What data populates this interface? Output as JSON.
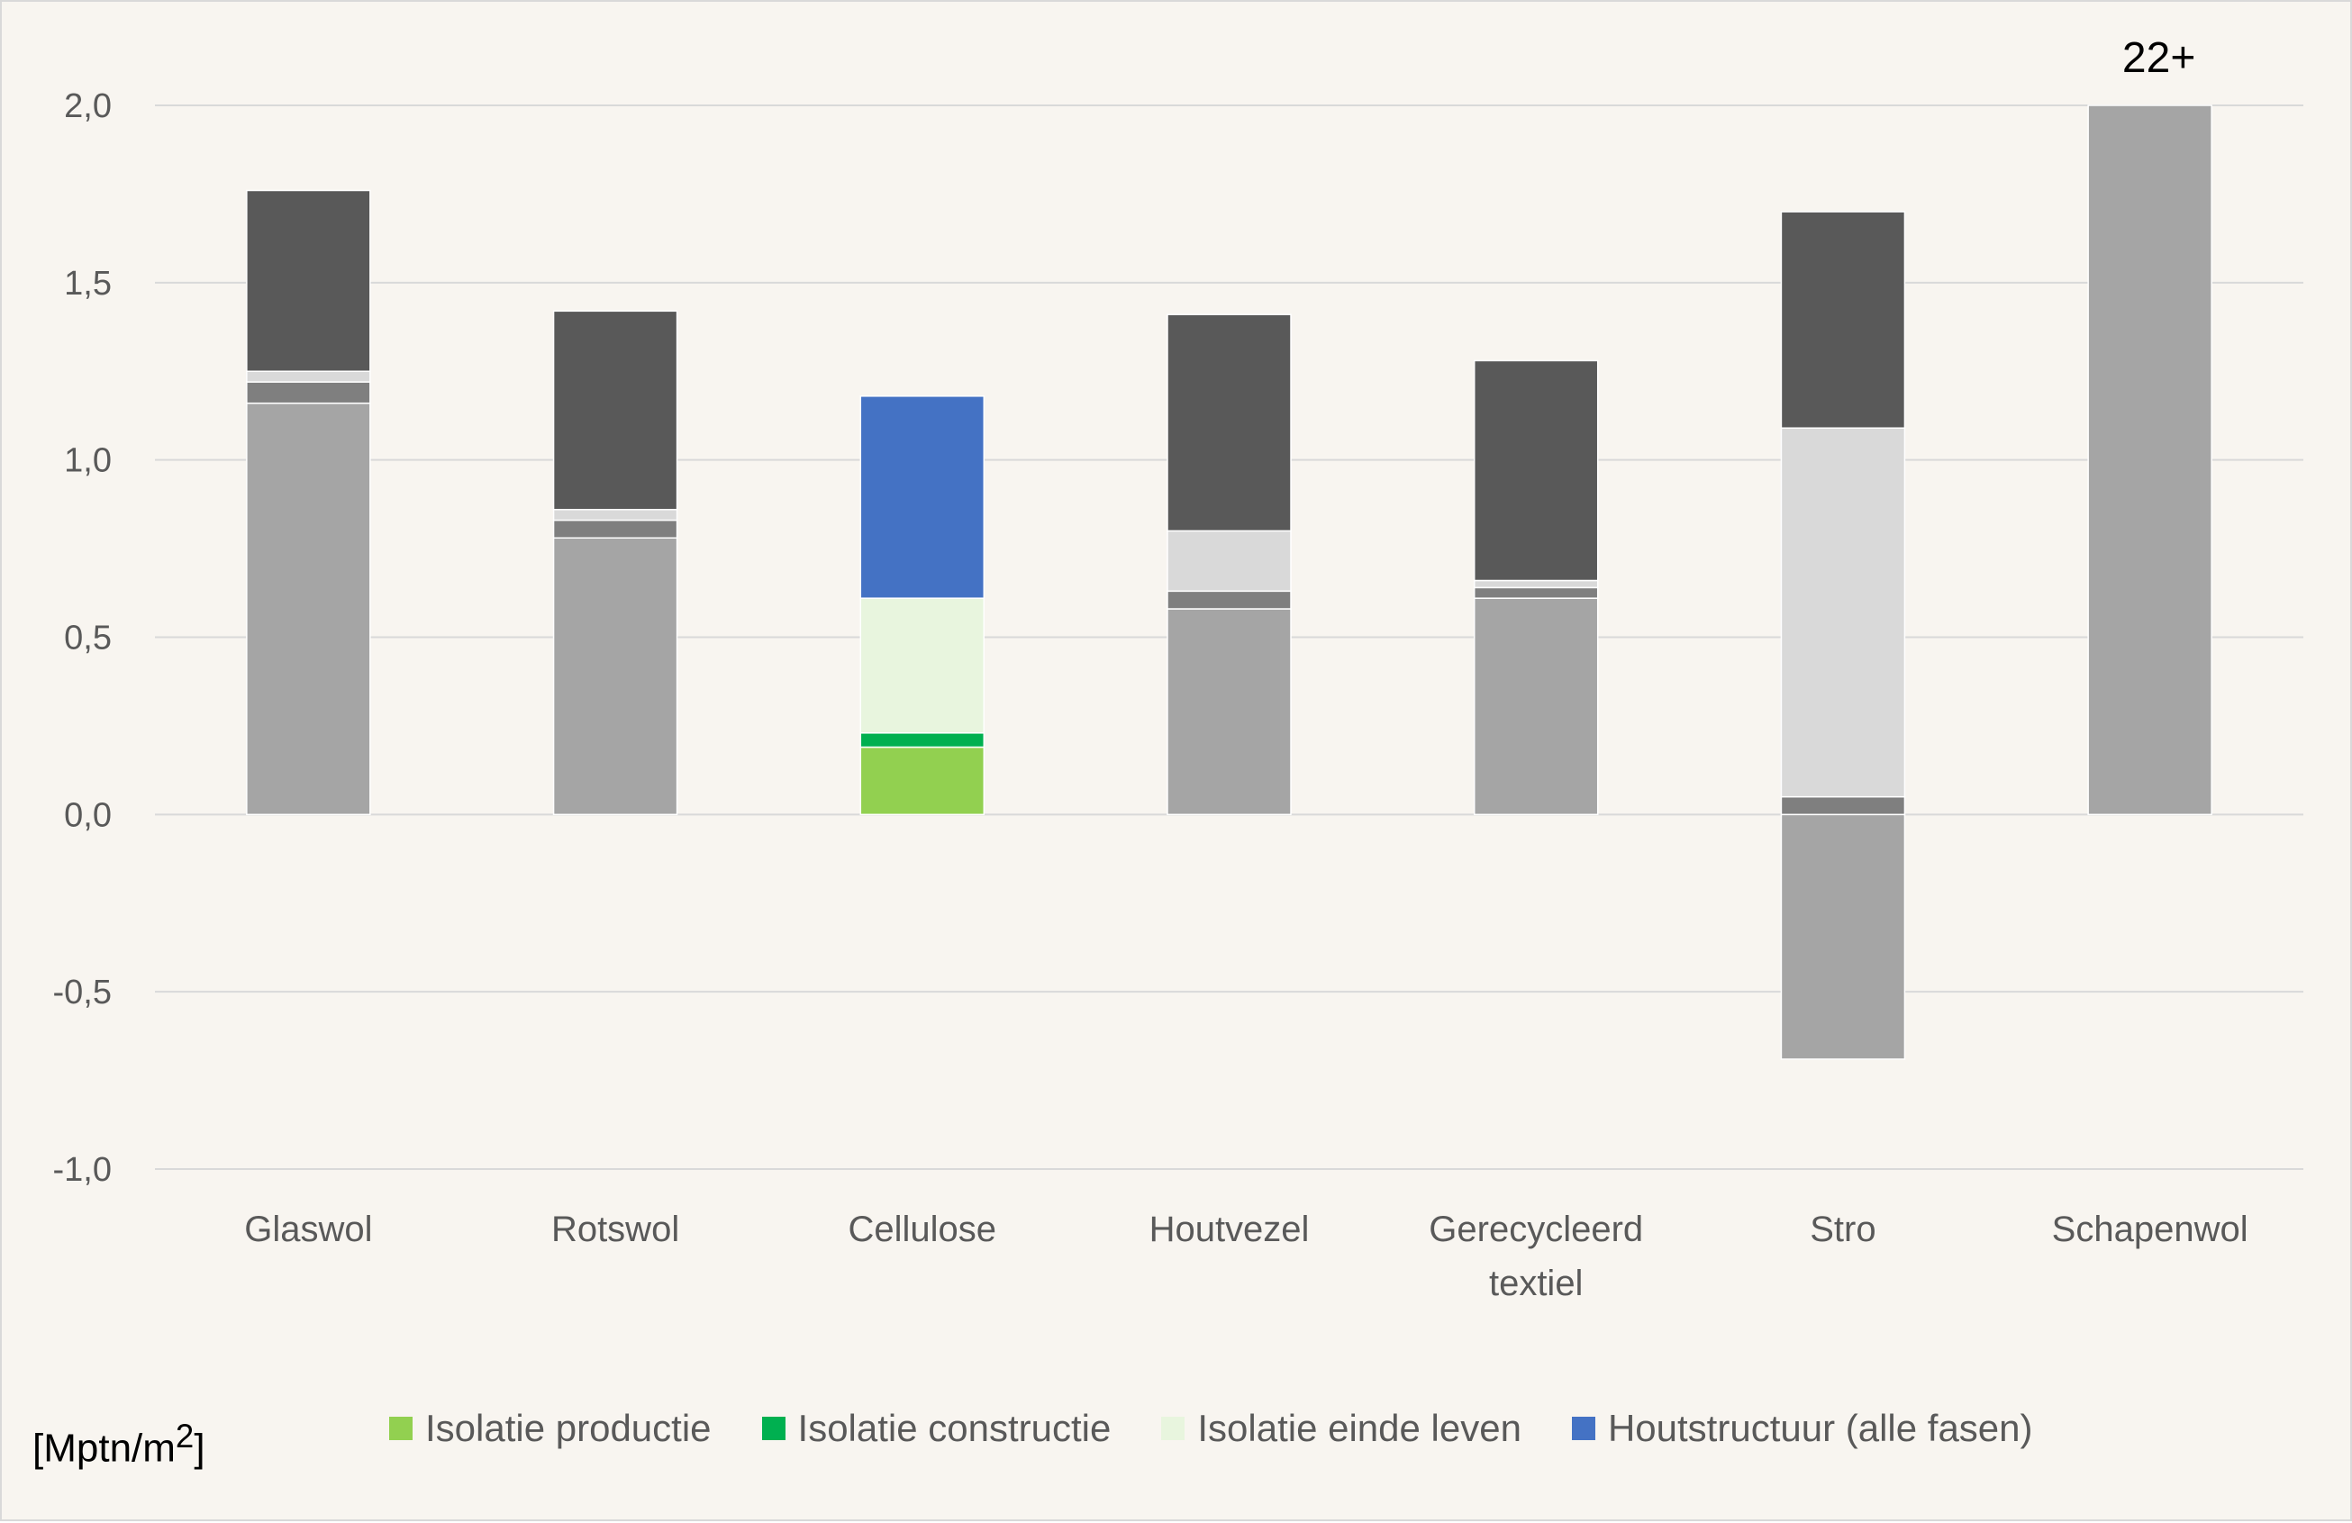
{
  "unit_label": "[Mptn/m",
  "unit_sup": "2",
  "unit_close": "]",
  "chart_data": {
    "type": "bar",
    "stacked": true,
    "categories": [
      "Glaswol",
      "Rotswol",
      "Cellulose",
      "Houtvezel",
      "Gerecycleerd textiel",
      "Stro",
      "Schapenwol"
    ],
    "category_lines": [
      [
        "Glaswol"
      ],
      [
        "Rotswol"
      ],
      [
        "Cellulose"
      ],
      [
        "Houtvezel"
      ],
      [
        "Gerecycleerd",
        "textiel"
      ],
      [
        "Stro"
      ],
      [
        "Schapenwol"
      ]
    ],
    "ylim": [
      -1.0,
      2.0
    ],
    "yticks": [
      2.0,
      1.5,
      1.0,
      0.5,
      0.0,
      -0.5,
      -1.0
    ],
    "ytick_labels": [
      "2,0",
      "1,5",
      "1,0",
      "0,5",
      "0,0",
      "-0,5",
      "-1,0"
    ],
    "grid": true,
    "legend_position": "bottom",
    "series": [
      {
        "name": "Isolatie productie",
        "color": "#92d050",
        "legend": true,
        "values": [
          0,
          0,
          0.19,
          0,
          0,
          0,
          0
        ]
      },
      {
        "name": "Isolatie constructie",
        "color": "#00b050",
        "legend": true,
        "values": [
          0,
          0,
          0.04,
          0,
          0,
          0,
          0
        ]
      },
      {
        "name": "Isolatie einde leven",
        "color": "#e8f5de",
        "legend": true,
        "values": [
          0,
          0,
          0.38,
          0,
          0,
          0,
          0
        ]
      },
      {
        "name": "Houtstructuur (alle fasen)",
        "color": "#4472c4",
        "legend": true,
        "values": [
          0,
          0,
          0.57,
          0,
          0,
          0,
          0
        ]
      },
      {
        "color": "#a5a5a5",
        "legend": false,
        "values": [
          1.16,
          0.78,
          0,
          0.58,
          0.61,
          -0.69,
          2.0
        ]
      },
      {
        "color": "#7f7f7f",
        "legend": false,
        "values": [
          0.06,
          0.05,
          0,
          0.05,
          0.03,
          0.05,
          0
        ]
      },
      {
        "color": "#d9d9d9",
        "legend": false,
        "values": [
          0.03,
          0.03,
          0,
          0.17,
          0.02,
          1.04,
          0
        ]
      },
      {
        "color": "#595959",
        "legend": false,
        "values": [
          0.51,
          0.56,
          0,
          0.61,
          0.62,
          0.61,
          0
        ]
      }
    ],
    "annotations": [
      {
        "category": "Schapenwol",
        "text": "22+"
      }
    ],
    "colors": {
      "background": "#f8f5f0",
      "grid": "#d9d9d9",
      "tick_text": "#595959"
    }
  }
}
